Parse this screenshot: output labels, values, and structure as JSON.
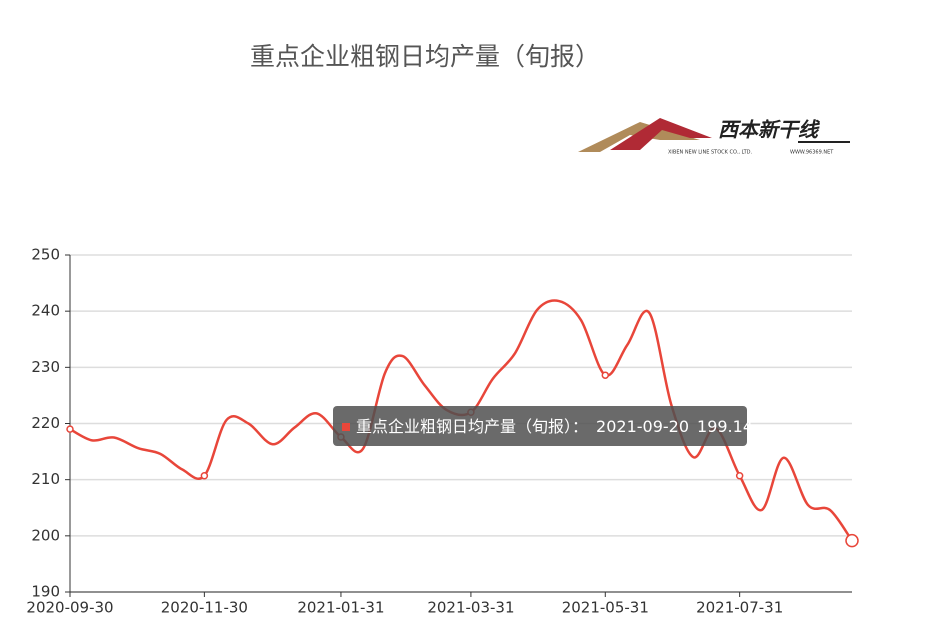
{
  "chart_data": {
    "type": "line",
    "title": "重点企业粗钢日均产量（旬报）",
    "logo": {
      "name": "西本新干线",
      "subtitle": "XIBEN NEW LINE STOCK CO., LTD.",
      "site": "WWW.96369.NET"
    },
    "x": [
      "2020-09-30",
      "2020-10-10",
      "2020-10-20",
      "2020-10-31",
      "2020-11-10",
      "2020-11-20",
      "2020-11-30",
      "2020-12-10",
      "2020-12-20",
      "2020-12-31",
      "2021-01-10",
      "2021-01-20",
      "2021-01-31",
      "2021-02-10",
      "2021-02-20",
      "2021-02-28",
      "2021-03-10",
      "2021-03-20",
      "2021-03-31",
      "2021-04-10",
      "2021-04-20",
      "2021-04-30",
      "2021-05-10",
      "2021-05-20",
      "2021-05-31",
      "2021-06-10",
      "2021-06-20",
      "2021-06-30",
      "2021-07-10",
      "2021-07-20",
      "2021-07-31",
      "2021-08-10",
      "2021-08-20",
      "2021-08-31",
      "2021-09-10",
      "2021-09-20"
    ],
    "series": [
      {
        "name": "重点企业粗钢日均产量（旬报）",
        "color": "#e8463a",
        "values": [
          219,
          217,
          217.5,
          215.6,
          214.6,
          211.8,
          210.7,
          220.6,
          220,
          216.3,
          219.3,
          221.8,
          217.6,
          215.5,
          229,
          232,
          226.8,
          222.4,
          222,
          228,
          232.5,
          240.2,
          241.8,
          238.4,
          228.6,
          234,
          239.7,
          223.3,
          214,
          219.2,
          210.7,
          204.6,
          213.9,
          205.5,
          204.6,
          199.14
        ]
      }
    ],
    "xlim": [
      "2020-09-30",
      "2021-09-20"
    ],
    "xticks": [
      "2020-09-30",
      "2020-11-30",
      "2021-01-31",
      "2021-03-31",
      "2021-05-31",
      "2021-07-31"
    ],
    "ylim": [
      190,
      250
    ],
    "yticks": [
      190,
      200,
      210,
      220,
      230,
      240,
      250
    ],
    "grid": true,
    "tooltip_separator": "：",
    "tooltip_index": 35
  }
}
